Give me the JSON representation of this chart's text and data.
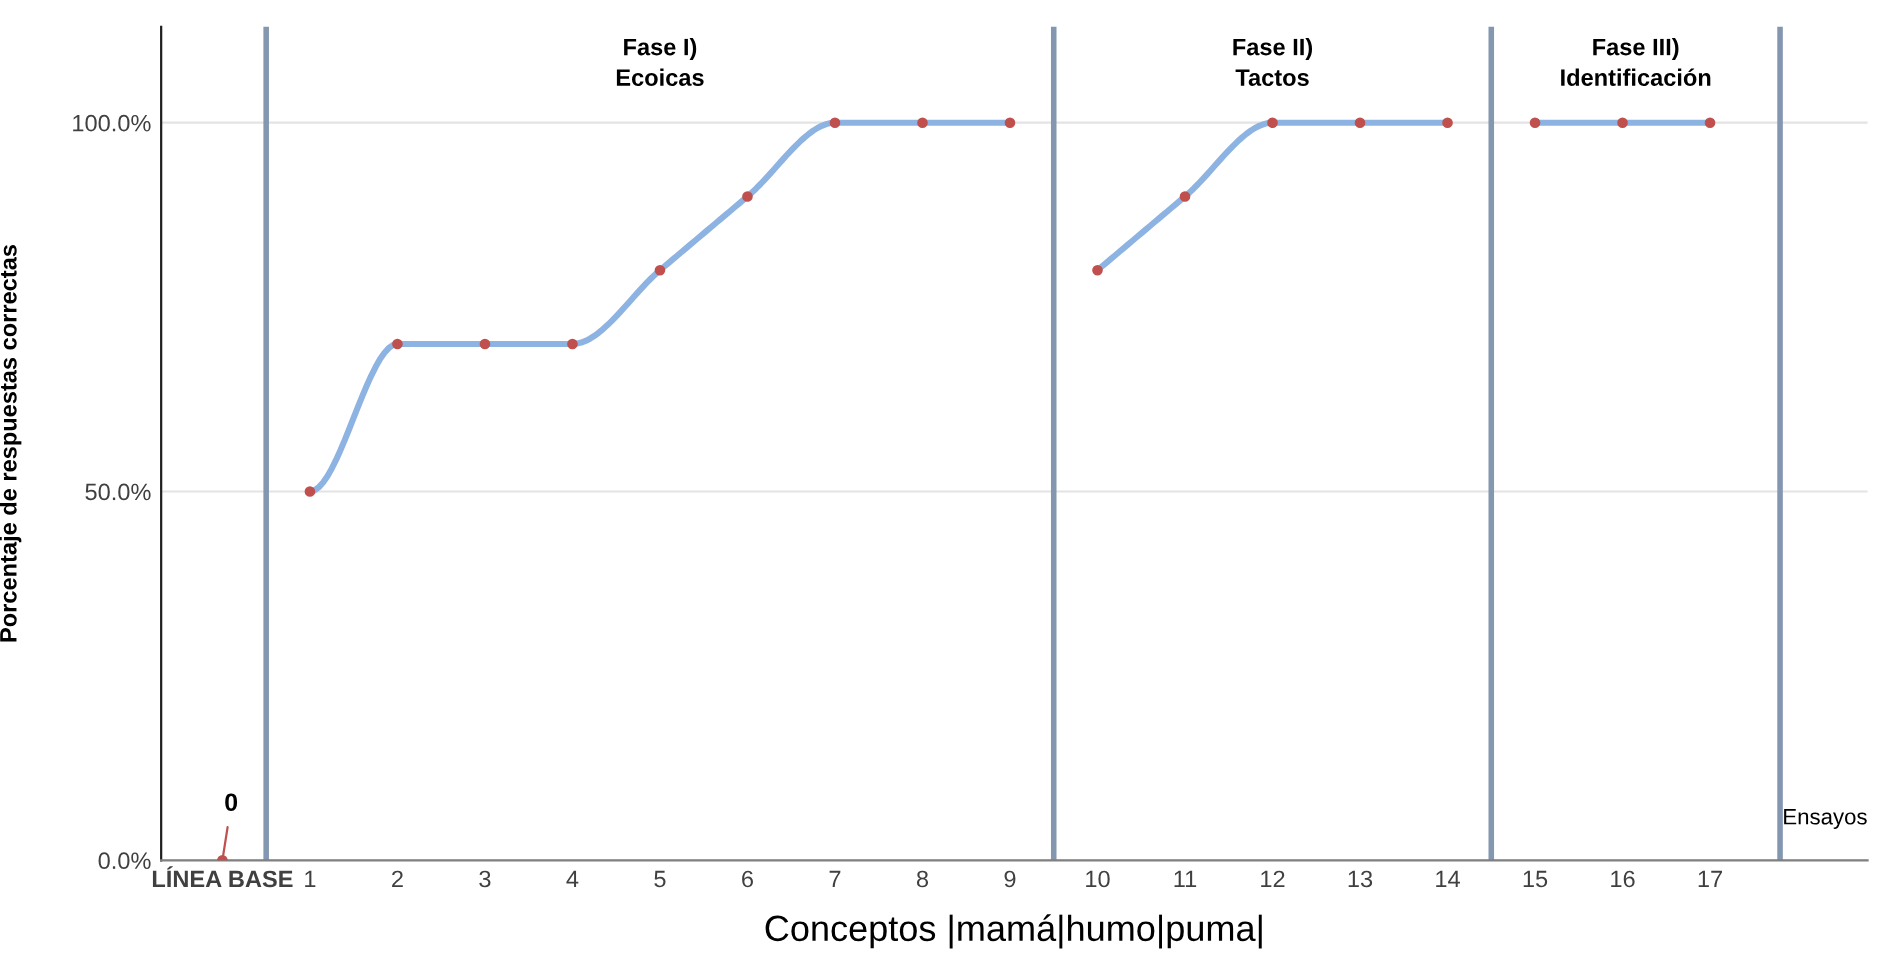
{
  "chart_data": {
    "type": "line",
    "ylabel": "Porcentaje de respuestas correctas",
    "xlabel": "Conceptos |mamá|humo|puma|",
    "series": [
      {
        "color": "#c0504d",
        "type": "scatter",
        "x": [
          0
        ],
        "values": [
          0
        ]
      },
      {
        "color": "#8db3e2",
        "colors": [
          "#c0504d",
          "#c0504d",
          "#c0504d",
          "#c0504d",
          "#c0504d",
          "#c0504d",
          "#c0504d",
          "#c0504d",
          "#c0504d"
        ],
        "x": [
          1,
          2,
          3,
          4,
          5,
          6,
          7,
          8,
          9
        ],
        "values": [
          50,
          70,
          70,
          70,
          80,
          90,
          100,
          100,
          100
        ]
      },
      {
        "color": "#8db3e2",
        "colors": [
          "#c0504d",
          "#c0504d",
          "#c0504d",
          "#c0504d",
          "#c0504d"
        ],
        "x": [
          10,
          11,
          12,
          13,
          14
        ],
        "values": [
          80,
          90,
          100,
          100,
          100
        ]
      },
      {
        "color": "#8db3e2",
        "colors": [
          "#c0504d",
          "#c0504d",
          "#c0504d"
        ],
        "x": [
          15,
          16,
          17
        ],
        "values": [
          100,
          100,
          100
        ]
      }
    ],
    "marker": "circle",
    "xlim": [
      -0.7,
      18.8
    ],
    "xticks": [
      {
        "value": 0,
        "label": "LÍNEA BASE"
      },
      1,
      2,
      3,
      4,
      5,
      6,
      7,
      8,
      9,
      10,
      11,
      12,
      13,
      14,
      15,
      16,
      17
    ],
    "ylim": [
      0,
      113
    ],
    "yticks": [
      {
        "value": 0,
        "label": "0.0%"
      },
      {
        "value": 50,
        "label": "50.0%"
      },
      {
        "value": 100,
        "label": "100.0%"
      }
    ],
    "grid": "y",
    "ref_lines": [
      {
        "axis": "x",
        "value": 0.5,
        "color": "#8497b0"
      },
      {
        "axis": "x",
        "value": 9.5,
        "color": "#8497b0"
      },
      {
        "axis": "x",
        "value": 14.5,
        "color": "#8497b0"
      },
      {
        "axis": "x",
        "value": 17.8,
        "color": "#8497b0"
      }
    ],
    "annotations": [
      "Fase I)\nEcoicas",
      "Fase II)\nTactos",
      "Fase III)\nIdentificación",
      {
        "text": "0",
        "x": 0,
        "y": 0
      },
      "Ensayos"
    ]
  }
}
